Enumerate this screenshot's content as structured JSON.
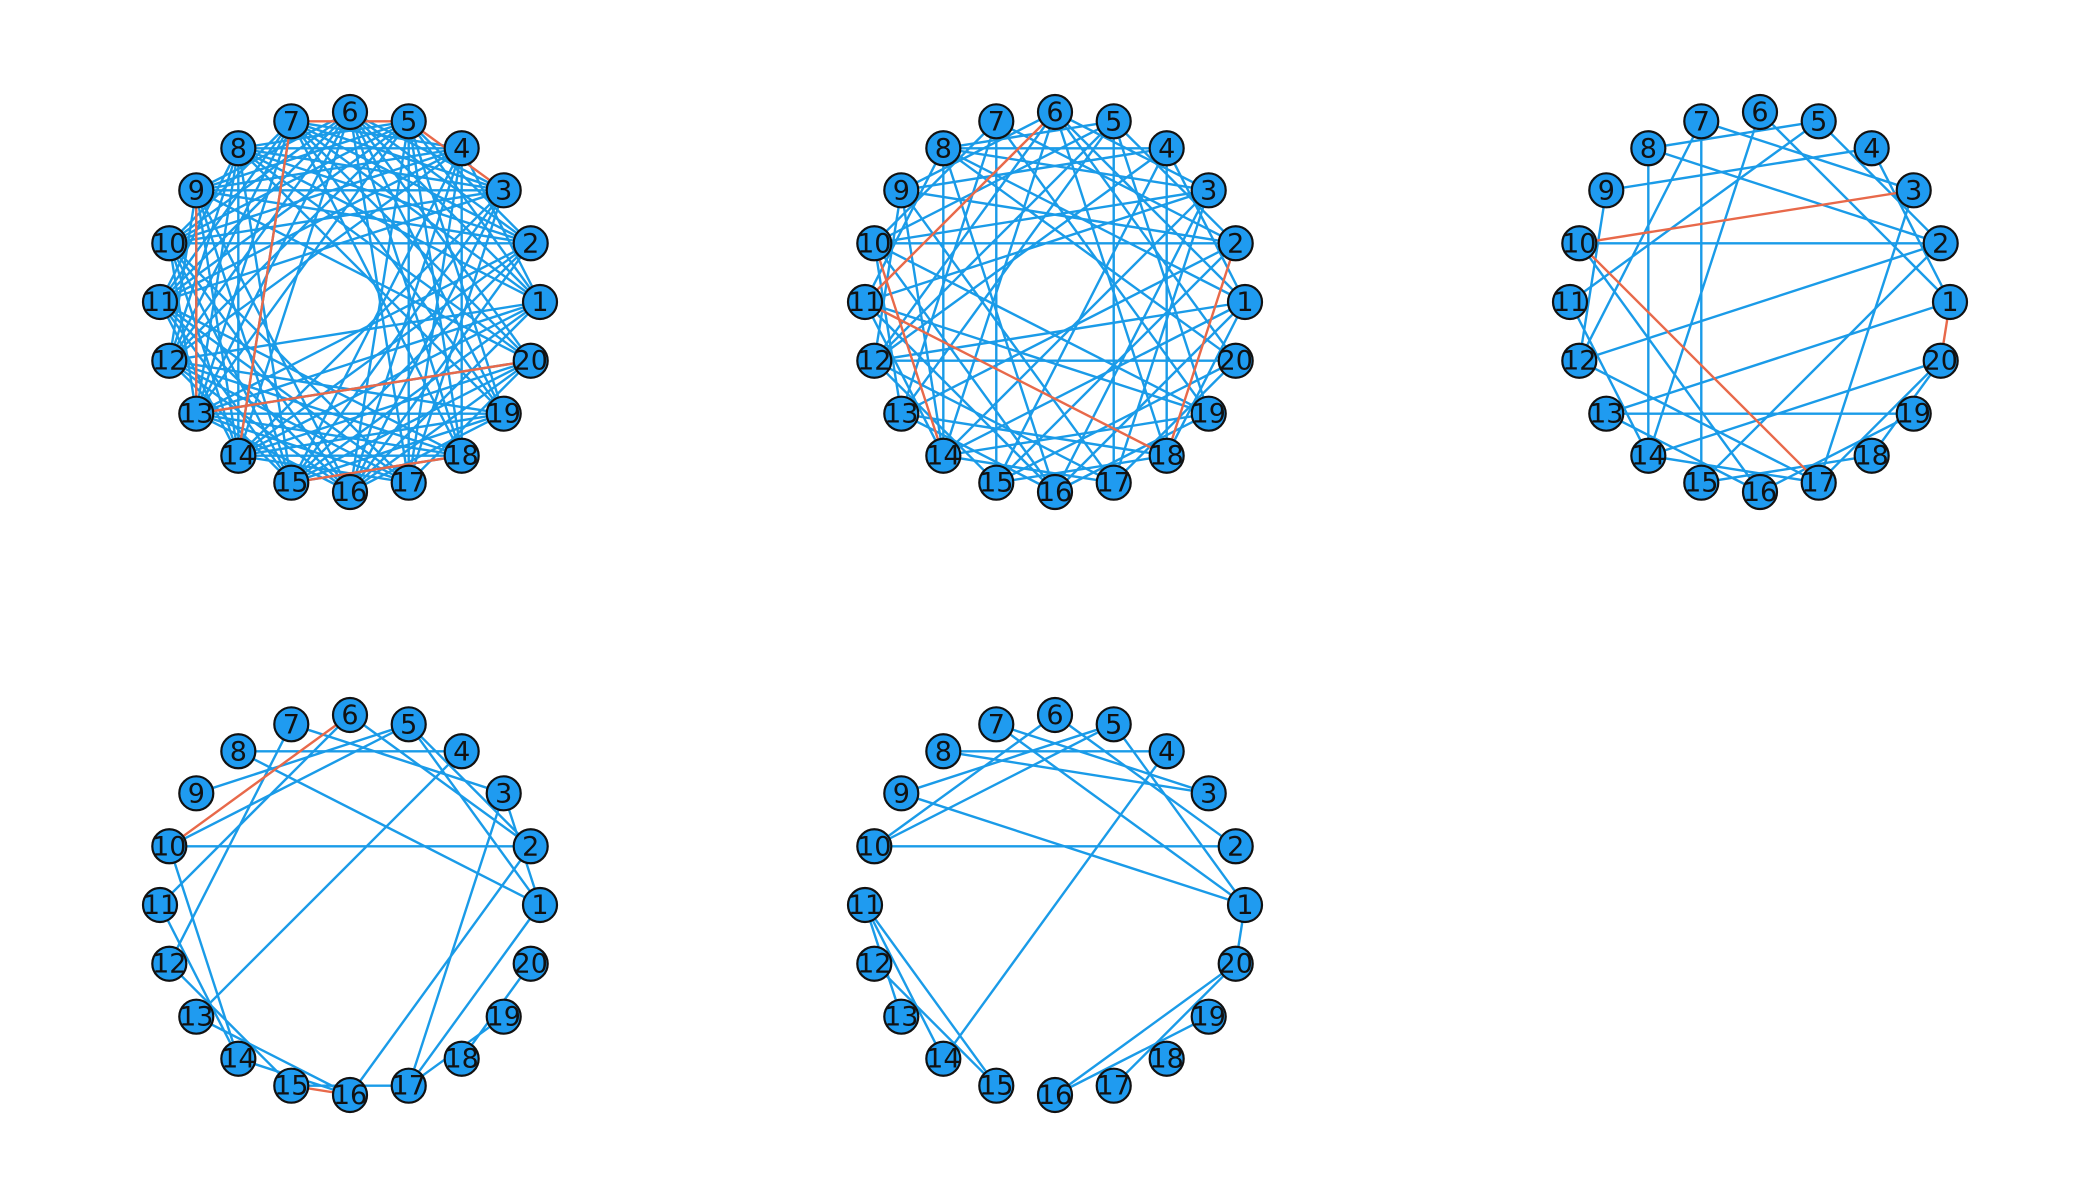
{
  "colors": {
    "node_fill": "#1f9bf0",
    "node_stroke": "#111111",
    "edge_normal": "#1a9be8",
    "edge_highlight": "#e8694a",
    "label": "#111111",
    "background": "#ffffff"
  },
  "node_labels": [
    "1",
    "2",
    "3",
    "4",
    "5",
    "6",
    "7",
    "8",
    "9",
    "10",
    "11",
    "12",
    "13",
    "14",
    "15",
    "16",
    "17",
    "18",
    "19",
    "20"
  ],
  "panels": [
    {
      "edges": [
        [
          1,
          4
        ],
        [
          1,
          5
        ],
        [
          1,
          6
        ],
        [
          1,
          7
        ],
        [
          1,
          8
        ],
        [
          1,
          12
        ],
        [
          1,
          13
        ],
        [
          1,
          14
        ],
        [
          1,
          15
        ],
        [
          1,
          16
        ],
        [
          2,
          5
        ],
        [
          2,
          6
        ],
        [
          2,
          7
        ],
        [
          2,
          8
        ],
        [
          2,
          9
        ],
        [
          2,
          10
        ],
        [
          2,
          13
        ],
        [
          2,
          14
        ],
        [
          2,
          15
        ],
        [
          2,
          16
        ],
        [
          3,
          6
        ],
        [
          3,
          7
        ],
        [
          3,
          8
        ],
        [
          3,
          9
        ],
        [
          3,
          10
        ],
        [
          3,
          11
        ],
        [
          3,
          14
        ],
        [
          3,
          15
        ],
        [
          3,
          16
        ],
        [
          3,
          17
        ],
        [
          4,
          7
        ],
        [
          4,
          8
        ],
        [
          4,
          9
        ],
        [
          4,
          10
        ],
        [
          4,
          11
        ],
        [
          4,
          12
        ],
        [
          4,
          15
        ],
        [
          4,
          16
        ],
        [
          4,
          17
        ],
        [
          4,
          18
        ],
        [
          5,
          8
        ],
        [
          5,
          9
        ],
        [
          5,
          10
        ],
        [
          5,
          11
        ],
        [
          5,
          12
        ],
        [
          5,
          13
        ],
        [
          5,
          16
        ],
        [
          5,
          17
        ],
        [
          5,
          18
        ],
        [
          5,
          19
        ],
        [
          6,
          9
        ],
        [
          6,
          10
        ],
        [
          6,
          11
        ],
        [
          6,
          12
        ],
        [
          6,
          13
        ],
        [
          6,
          14
        ],
        [
          6,
          17
        ],
        [
          6,
          18
        ],
        [
          6,
          19
        ],
        [
          6,
          20
        ],
        [
          7,
          10
        ],
        [
          7,
          11
        ],
        [
          7,
          12
        ],
        [
          7,
          13
        ],
        [
          7,
          14
        ],
        [
          7,
          18
        ],
        [
          7,
          19
        ],
        [
          7,
          20
        ],
        [
          8,
          11
        ],
        [
          8,
          12
        ],
        [
          8,
          13
        ],
        [
          8,
          14
        ],
        [
          8,
          15
        ],
        [
          8,
          19
        ],
        [
          8,
          20
        ],
        [
          9,
          12
        ],
        [
          9,
          13
        ],
        [
          9,
          14
        ],
        [
          9,
          15
        ],
        [
          9,
          16
        ],
        [
          9,
          20
        ],
        [
          10,
          13
        ],
        [
          10,
          14
        ],
        [
          10,
          15
        ],
        [
          10,
          16
        ],
        [
          10,
          17
        ],
        [
          11,
          14
        ],
        [
          11,
          15
        ],
        [
          11,
          16
        ],
        [
          11,
          17
        ],
        [
          11,
          18
        ],
        [
          12,
          15
        ],
        [
          12,
          16
        ],
        [
          12,
          17
        ],
        [
          12,
          18
        ],
        [
          12,
          19
        ],
        [
          13,
          16
        ],
        [
          13,
          17
        ],
        [
          13,
          18
        ],
        [
          13,
          19
        ],
        [
          13,
          20
        ],
        [
          14,
          17
        ],
        [
          14,
          18
        ],
        [
          14,
          19
        ],
        [
          14,
          20
        ],
        [
          15,
          18
        ],
        [
          15,
          19
        ],
        [
          15,
          20
        ],
        [
          16,
          19
        ],
        [
          16,
          20
        ],
        [
          17,
          20
        ]
      ],
      "highlighted": [
        [
          3,
          5
        ],
        [
          5,
          7
        ],
        [
          7,
          14
        ],
        [
          13,
          20
        ],
        [
          15,
          18
        ],
        [
          9,
          13
        ]
      ]
    },
    {
      "edges": [
        [
          1,
          4
        ],
        [
          1,
          6
        ],
        [
          1,
          8
        ],
        [
          1,
          12
        ],
        [
          1,
          14
        ],
        [
          1,
          16
        ],
        [
          1,
          18
        ],
        [
          2,
          5
        ],
        [
          2,
          7
        ],
        [
          2,
          9
        ],
        [
          2,
          10
        ],
        [
          2,
          13
        ],
        [
          2,
          15
        ],
        [
          3,
          6
        ],
        [
          3,
          8
        ],
        [
          3,
          10
        ],
        [
          3,
          11
        ],
        [
          3,
          14
        ],
        [
          3,
          16
        ],
        [
          3,
          17
        ],
        [
          4,
          8
        ],
        [
          4,
          9
        ],
        [
          4,
          12
        ],
        [
          4,
          15
        ],
        [
          4,
          18
        ],
        [
          5,
          8
        ],
        [
          5,
          10
        ],
        [
          5,
          12
        ],
        [
          5,
          13
        ],
        [
          5,
          17
        ],
        [
          5,
          19
        ],
        [
          6,
          9
        ],
        [
          6,
          12
        ],
        [
          6,
          14
        ],
        [
          6,
          18
        ],
        [
          6,
          20
        ],
        [
          7,
          10
        ],
        [
          7,
          13
        ],
        [
          7,
          15
        ],
        [
          7,
          19
        ],
        [
          8,
          11
        ],
        [
          8,
          14
        ],
        [
          8,
          16
        ],
        [
          8,
          20
        ],
        [
          9,
          12
        ],
        [
          9,
          14
        ],
        [
          9,
          17
        ],
        [
          10,
          13
        ],
        [
          10,
          16
        ],
        [
          10,
          19
        ],
        [
          11,
          14
        ],
        [
          11,
          16
        ],
        [
          11,
          19
        ],
        [
          12,
          15
        ],
        [
          12,
          17
        ],
        [
          12,
          20
        ],
        [
          13,
          16
        ],
        [
          13,
          18
        ],
        [
          14,
          17
        ],
        [
          14,
          19
        ],
        [
          15,
          18
        ],
        [
          15,
          20
        ],
        [
          16,
          19
        ],
        [
          17,
          20
        ]
      ],
      "highlighted": [
        [
          6,
          11
        ],
        [
          2,
          18
        ],
        [
          10,
          14
        ],
        [
          11,
          18
        ]
      ]
    },
    {
      "edges": [
        [
          1,
          4
        ],
        [
          1,
          6
        ],
        [
          1,
          13
        ],
        [
          2,
          5
        ],
        [
          2,
          8
        ],
        [
          2,
          10
        ],
        [
          2,
          12
        ],
        [
          2,
          15
        ],
        [
          3,
          7
        ],
        [
          3,
          17
        ],
        [
          4,
          9
        ],
        [
          5,
          8
        ],
        [
          5,
          11
        ],
        [
          6,
          14
        ],
        [
          7,
          12
        ],
        [
          7,
          15
        ],
        [
          8,
          14
        ],
        [
          9,
          12
        ],
        [
          10,
          16
        ],
        [
          11,
          14
        ],
        [
          12,
          17
        ],
        [
          13,
          16
        ],
        [
          13,
          19
        ],
        [
          14,
          17
        ],
        [
          14,
          20
        ],
        [
          15,
          18
        ],
        [
          16,
          19
        ],
        [
          17,
          20
        ],
        [
          18,
          20
        ]
      ],
      "highlighted": [
        [
          3,
          10
        ],
        [
          10,
          17
        ],
        [
          1,
          20
        ]
      ]
    },
    {
      "edges": [
        [
          1,
          3
        ],
        [
          1,
          5
        ],
        [
          1,
          8
        ],
        [
          1,
          17
        ],
        [
          2,
          5
        ],
        [
          2,
          6
        ],
        [
          2,
          10
        ],
        [
          2,
          16
        ],
        [
          3,
          7
        ],
        [
          3,
          17
        ],
        [
          4,
          8
        ],
        [
          4,
          13
        ],
        [
          5,
          9
        ],
        [
          5,
          10
        ],
        [
          6,
          11
        ],
        [
          7,
          12
        ],
        [
          10,
          14
        ],
        [
          11,
          14
        ],
        [
          12,
          15
        ],
        [
          13,
          16
        ],
        [
          17,
          19
        ],
        [
          18,
          20
        ],
        [
          14,
          16
        ],
        [
          15,
          17
        ]
      ],
      "highlighted": [
        [
          6,
          10
        ],
        [
          15,
          16
        ]
      ]
    },
    {
      "edges": [
        [
          1,
          5
        ],
        [
          1,
          7
        ],
        [
          1,
          9
        ],
        [
          1,
          20
        ],
        [
          2,
          6
        ],
        [
          2,
          10
        ],
        [
          3,
          7
        ],
        [
          3,
          8
        ],
        [
          4,
          8
        ],
        [
          4,
          14
        ],
        [
          5,
          9
        ],
        [
          5,
          10
        ],
        [
          6,
          10
        ],
        [
          11,
          13
        ],
        [
          11,
          14
        ],
        [
          11,
          15
        ],
        [
          12,
          15
        ],
        [
          16,
          19
        ],
        [
          16,
          20
        ],
        [
          17,
          20
        ]
      ],
      "highlighted": []
    }
  ]
}
